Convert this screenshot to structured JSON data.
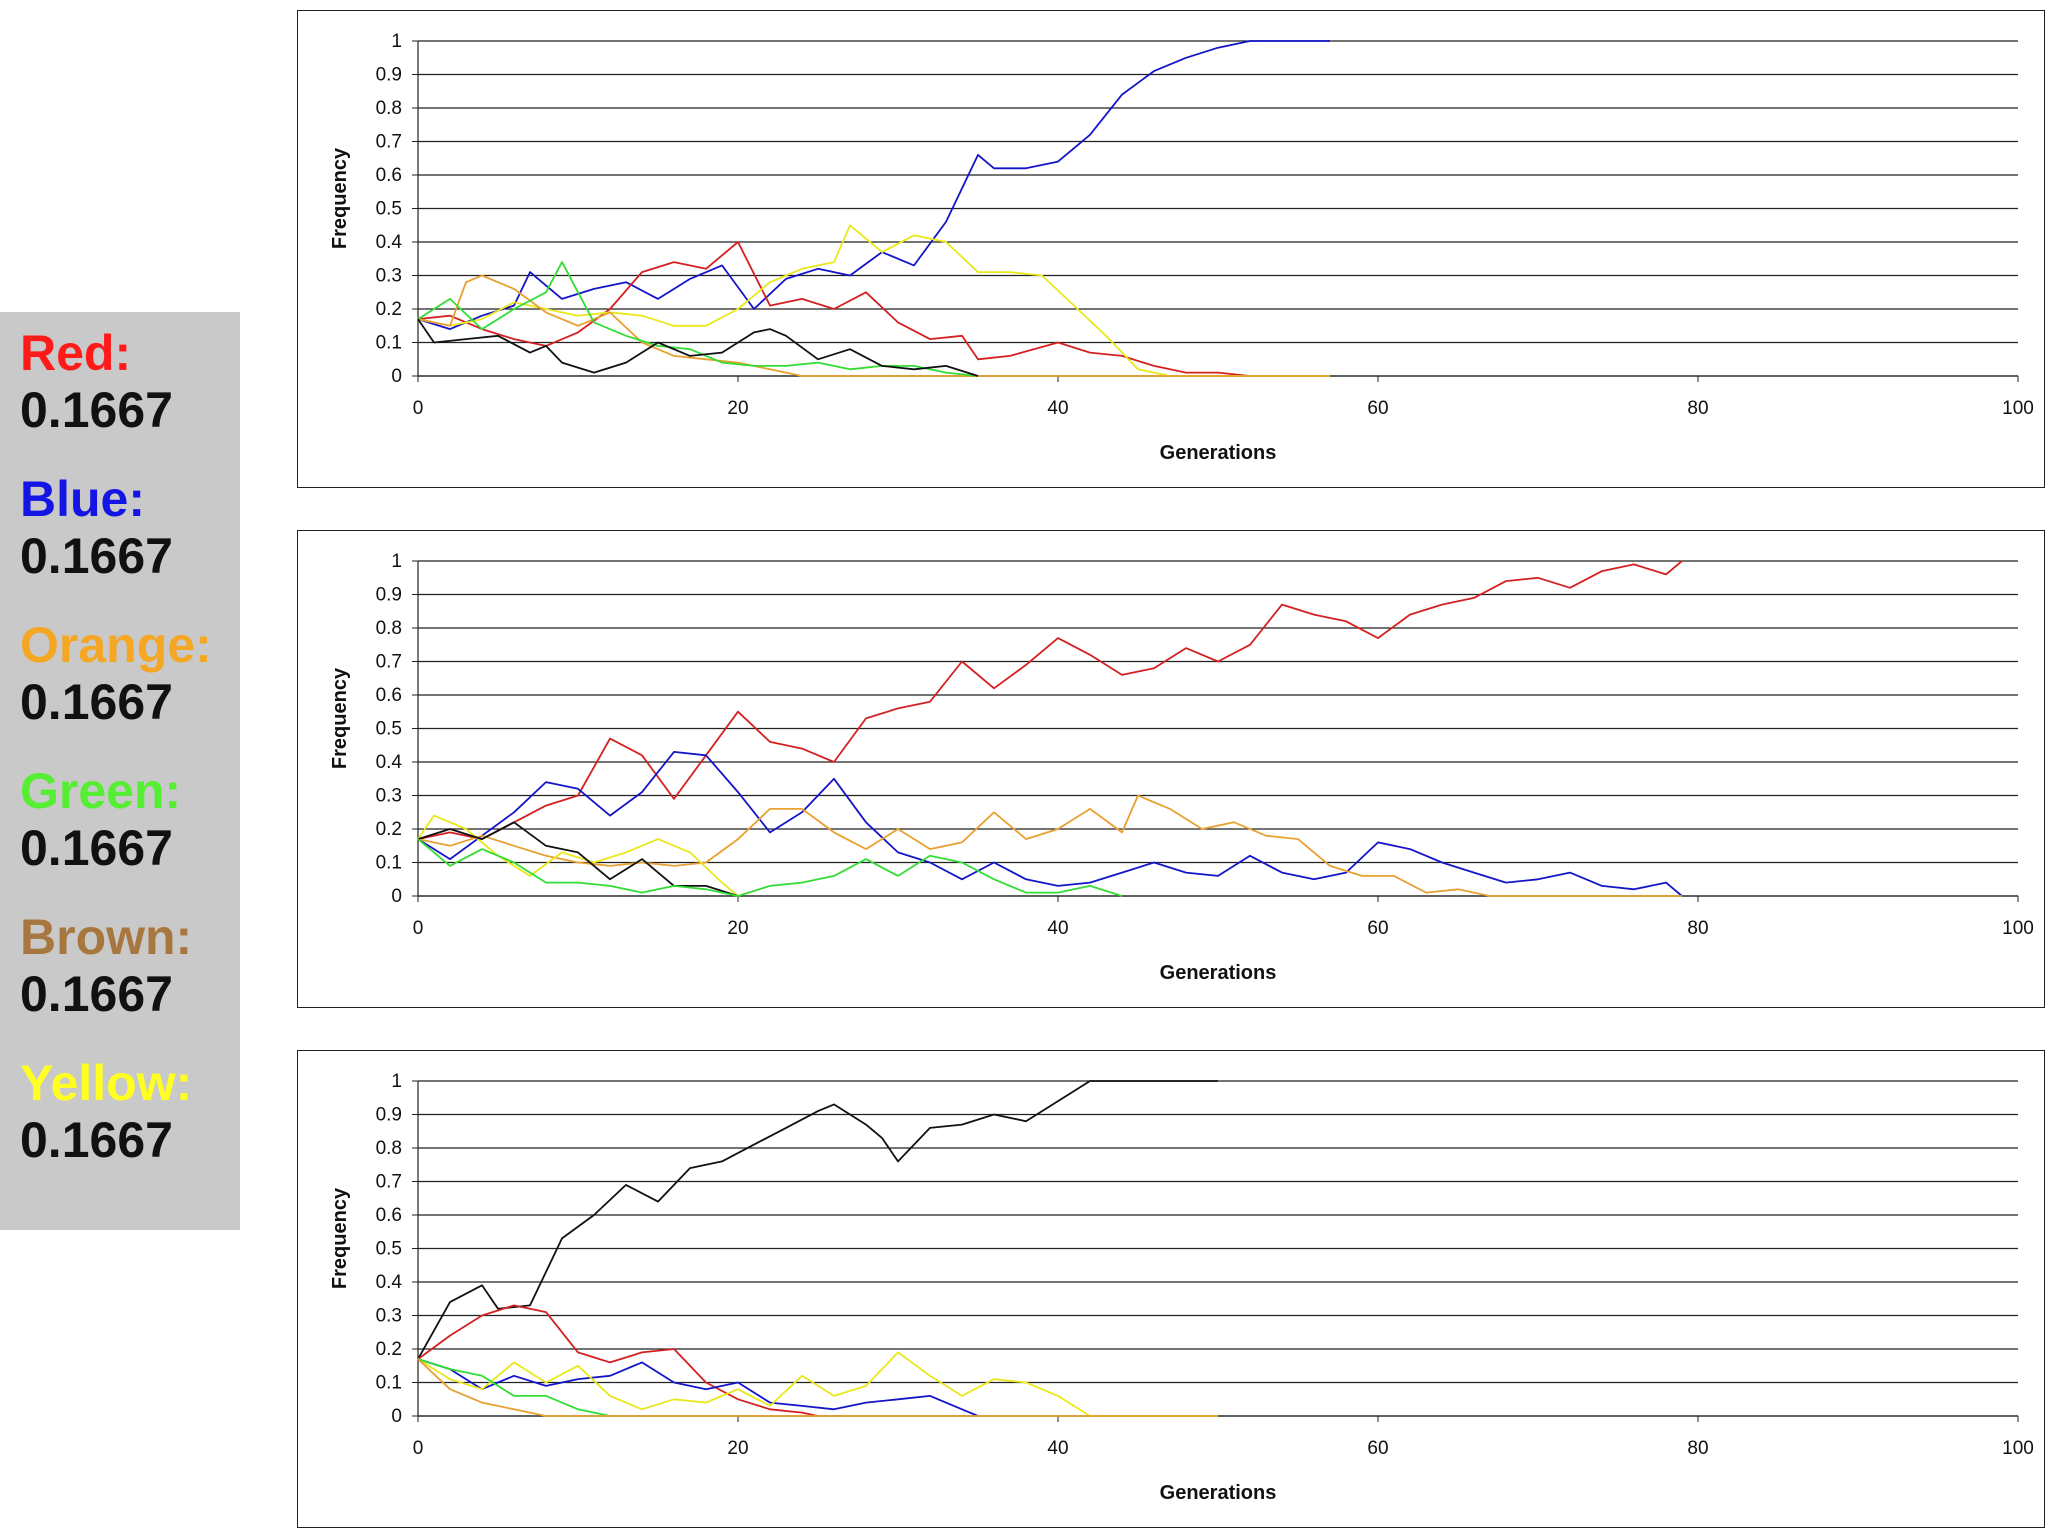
{
  "legend": {
    "items": [
      {
        "label": "Red:",
        "value": "0.1667",
        "color": "#ff1a1a"
      },
      {
        "label": "Blue:",
        "value": "0.1667",
        "color": "#1414e6"
      },
      {
        "label": "Orange:",
        "value": "0.1667",
        "color": "#f5a623"
      },
      {
        "label": "Green:",
        "value": "0.1667",
        "color": "#55ee33"
      },
      {
        "label": "Brown:",
        "value": "0.1667",
        "color": "#a8773f"
      },
      {
        "label": "Yellow:",
        "value": "0.1667",
        "color": "#ffff22"
      }
    ]
  },
  "chart_data": [
    {
      "type": "line",
      "title": "",
      "xlabel": "Generations",
      "ylabel": "Frequency",
      "xlim": [
        0,
        100
      ],
      "ylim": [
        0,
        1
      ],
      "x_ticks": [
        "0",
        "20",
        "40",
        "60",
        "80",
        "100"
      ],
      "y_ticks": [
        "0",
        "0.1",
        "0.2",
        "0.3",
        "0.4",
        "0.5",
        "0.6",
        "0.7",
        "0.8",
        "0.9",
        "1"
      ],
      "grid": true,
      "series": [
        {
          "name": "Blue",
          "color": "#1414c8",
          "x": [
            0,
            2,
            4,
            6,
            7,
            9,
            11,
            13,
            15,
            17,
            19,
            21,
            23,
            25,
            27,
            29,
            31,
            33,
            35,
            36,
            38,
            40,
            42,
            44,
            46,
            48,
            50,
            52,
            54,
            57
          ],
          "y": [
            0.17,
            0.14,
            0.18,
            0.21,
            0.31,
            0.23,
            0.26,
            0.28,
            0.23,
            0.29,
            0.33,
            0.2,
            0.29,
            0.32,
            0.3,
            0.37,
            0.33,
            0.46,
            0.66,
            0.62,
            0.62,
            0.64,
            0.72,
            0.84,
            0.91,
            0.95,
            0.98,
            1.0,
            1.0,
            1.0
          ]
        },
        {
          "name": "Red",
          "color": "#d42020",
          "x": [
            0,
            2,
            4,
            6,
            8,
            10,
            12,
            14,
            16,
            18,
            20,
            22,
            24,
            26,
            28,
            30,
            32,
            34,
            35,
            37,
            40,
            42,
            44,
            46,
            48,
            50,
            52
          ],
          "y": [
            0.17,
            0.18,
            0.14,
            0.11,
            0.09,
            0.13,
            0.2,
            0.31,
            0.34,
            0.32,
            0.4,
            0.21,
            0.23,
            0.2,
            0.25,
            0.16,
            0.11,
            0.12,
            0.05,
            0.06,
            0.1,
            0.07,
            0.06,
            0.03,
            0.01,
            0.01,
            0.0
          ]
        },
        {
          "name": "Yellow",
          "color": "#e8e81a",
          "x": [
            0,
            2,
            4,
            6,
            8,
            10,
            12,
            14,
            16,
            18,
            20,
            22,
            24,
            26,
            27,
            29,
            31,
            33,
            35,
            37,
            39,
            41,
            43,
            45,
            47,
            52,
            57
          ],
          "y": [
            0.17,
            0.15,
            0.17,
            0.22,
            0.2,
            0.18,
            0.19,
            0.18,
            0.15,
            0.15,
            0.2,
            0.28,
            0.32,
            0.34,
            0.45,
            0.37,
            0.42,
            0.4,
            0.31,
            0.31,
            0.3,
            0.21,
            0.12,
            0.02,
            0.0,
            0.0,
            0.0
          ]
        },
        {
          "name": "Orange",
          "color": "#e8a030",
          "x": [
            0,
            2,
            3,
            4,
            6,
            8,
            10,
            12,
            14,
            16,
            18,
            20,
            22,
            24,
            26,
            30,
            35,
            40,
            50,
            57
          ],
          "y": [
            0.17,
            0.15,
            0.28,
            0.3,
            0.26,
            0.19,
            0.15,
            0.19,
            0.1,
            0.06,
            0.05,
            0.04,
            0.02,
            0.0,
            0.0,
            0.0,
            0.0,
            0.0,
            0.0,
            0.0
          ]
        },
        {
          "name": "Green",
          "color": "#33dd33",
          "x": [
            0,
            2,
            4,
            6,
            8,
            9,
            11,
            13,
            15,
            17,
            19,
            21,
            23,
            25,
            27,
            29,
            31,
            33,
            35
          ],
          "y": [
            0.17,
            0.23,
            0.14,
            0.2,
            0.25,
            0.34,
            0.16,
            0.12,
            0.09,
            0.08,
            0.04,
            0.03,
            0.03,
            0.04,
            0.02,
            0.03,
            0.03,
            0.01,
            0.0
          ]
        },
        {
          "name": "Brown",
          "color": "#111111",
          "x": [
            0,
            1,
            3,
            5,
            7,
            8,
            9,
            11,
            13,
            15,
            17,
            19,
            21,
            22,
            23,
            25,
            27,
            29,
            31,
            33,
            35
          ],
          "y": [
            0.17,
            0.1,
            0.11,
            0.12,
            0.07,
            0.09,
            0.04,
            0.01,
            0.04,
            0.1,
            0.06,
            0.07,
            0.13,
            0.14,
            0.12,
            0.05,
            0.08,
            0.03,
            0.02,
            0.03,
            0.0
          ]
        }
      ]
    },
    {
      "type": "line",
      "title": "",
      "xlabel": "Generations",
      "ylabel": "Frequency",
      "xlim": [
        0,
        100
      ],
      "ylim": [
        0,
        1
      ],
      "x_ticks": [
        "0",
        "20",
        "40",
        "60",
        "80",
        "100"
      ],
      "y_ticks": [
        "0",
        "0.1",
        "0.2",
        "0.3",
        "0.4",
        "0.5",
        "0.6",
        "0.7",
        "0.8",
        "0.9",
        "1"
      ],
      "grid": true,
      "series": [
        {
          "name": "Red",
          "color": "#d42020",
          "x": [
            0,
            2,
            4,
            6,
            8,
            10,
            12,
            14,
            16,
            18,
            20,
            22,
            24,
            26,
            28,
            30,
            32,
            34,
            36,
            38,
            40,
            42,
            44,
            46,
            48,
            50,
            52,
            54,
            56,
            58,
            60,
            62,
            64,
            66,
            68,
            70,
            72,
            74,
            76,
            78,
            79
          ],
          "y": [
            0.17,
            0.19,
            0.17,
            0.22,
            0.27,
            0.3,
            0.47,
            0.42,
            0.29,
            0.42,
            0.55,
            0.46,
            0.44,
            0.4,
            0.53,
            0.56,
            0.58,
            0.7,
            0.62,
            0.69,
            0.77,
            0.72,
            0.66,
            0.68,
            0.74,
            0.7,
            0.75,
            0.87,
            0.84,
            0.82,
            0.77,
            0.84,
            0.87,
            0.89,
            0.94,
            0.95,
            0.92,
            0.97,
            0.99,
            0.96,
            1.0
          ]
        },
        {
          "name": "Blue",
          "color": "#1414c8",
          "x": [
            0,
            2,
            4,
            6,
            8,
            10,
            12,
            14,
            16,
            18,
            20,
            22,
            24,
            26,
            28,
            30,
            32,
            34,
            36,
            38,
            40,
            42,
            44,
            46,
            48,
            50,
            52,
            54,
            56,
            58,
            60,
            62,
            64,
            66,
            68,
            70,
            72,
            74,
            76,
            78,
            79
          ],
          "y": [
            0.17,
            0.11,
            0.18,
            0.25,
            0.34,
            0.32,
            0.24,
            0.31,
            0.43,
            0.42,
            0.31,
            0.19,
            0.25,
            0.35,
            0.22,
            0.13,
            0.1,
            0.05,
            0.1,
            0.05,
            0.03,
            0.04,
            0.07,
            0.1,
            0.07,
            0.06,
            0.12,
            0.07,
            0.05,
            0.07,
            0.16,
            0.14,
            0.1,
            0.07,
            0.04,
            0.05,
            0.07,
            0.03,
            0.02,
            0.04,
            0.0
          ]
        },
        {
          "name": "Orange",
          "color": "#e8a030",
          "x": [
            0,
            2,
            4,
            6,
            8,
            10,
            12,
            14,
            16,
            18,
            20,
            22,
            24,
            26,
            28,
            30,
            32,
            34,
            36,
            38,
            40,
            42,
            44,
            45,
            47,
            49,
            51,
            53,
            55,
            57,
            59,
            61,
            63,
            65,
            67,
            70,
            75,
            79
          ],
          "y": [
            0.17,
            0.15,
            0.18,
            0.15,
            0.12,
            0.1,
            0.09,
            0.1,
            0.09,
            0.1,
            0.17,
            0.26,
            0.26,
            0.19,
            0.14,
            0.2,
            0.14,
            0.16,
            0.25,
            0.17,
            0.2,
            0.26,
            0.19,
            0.3,
            0.26,
            0.2,
            0.22,
            0.18,
            0.17,
            0.09,
            0.06,
            0.06,
            0.01,
            0.02,
            0.0,
            0.0,
            0.0,
            0.0
          ]
        },
        {
          "name": "Yellow",
          "color": "#e8e81a",
          "x": [
            0,
            1,
            3,
            5,
            7,
            9,
            11,
            13,
            15,
            17,
            19,
            20
          ],
          "y": [
            0.17,
            0.24,
            0.2,
            0.12,
            0.06,
            0.13,
            0.1,
            0.13,
            0.17,
            0.13,
            0.04,
            0.0
          ]
        },
        {
          "name": "Brown",
          "color": "#111111",
          "x": [
            0,
            2,
            4,
            6,
            8,
            10,
            12,
            14,
            16,
            18,
            20
          ],
          "y": [
            0.17,
            0.2,
            0.17,
            0.22,
            0.15,
            0.13,
            0.05,
            0.11,
            0.03,
            0.03,
            0.0
          ]
        },
        {
          "name": "Green",
          "color": "#33dd33",
          "x": [
            0,
            2,
            4,
            6,
            8,
            10,
            12,
            14,
            16,
            18,
            20,
            22,
            24,
            26,
            28,
            30,
            32,
            34,
            36,
            38,
            40,
            42,
            44
          ],
          "y": [
            0.17,
            0.09,
            0.14,
            0.1,
            0.04,
            0.04,
            0.03,
            0.01,
            0.03,
            0.02,
            0.0,
            0.03,
            0.04,
            0.06,
            0.11,
            0.06,
            0.12,
            0.1,
            0.05,
            0.01,
            0.01,
            0.03,
            0.0
          ]
        }
      ]
    },
    {
      "type": "line",
      "title": "",
      "xlabel": "Generations",
      "ylabel": "Frequency",
      "xlim": [
        0,
        100
      ],
      "ylim": [
        0,
        1
      ],
      "x_ticks": [
        "0",
        "20",
        "40",
        "60",
        "80",
        "100"
      ],
      "y_ticks": [
        "0",
        "0.1",
        "0.2",
        "0.3",
        "0.4",
        "0.5",
        "0.6",
        "0.7",
        "0.8",
        "0.9",
        "1"
      ],
      "grid": true,
      "series": [
        {
          "name": "Brown",
          "color": "#111111",
          "x": [
            0,
            2,
            4,
            5,
            7,
            9,
            11,
            13,
            15,
            17,
            19,
            21,
            23,
            25,
            26,
            28,
            29,
            30,
            32,
            34,
            36,
            38,
            40,
            42,
            44,
            46,
            50
          ],
          "y": [
            0.17,
            0.34,
            0.39,
            0.32,
            0.33,
            0.53,
            0.6,
            0.69,
            0.64,
            0.74,
            0.76,
            0.81,
            0.86,
            0.91,
            0.93,
            0.87,
            0.83,
            0.76,
            0.86,
            0.87,
            0.9,
            0.88,
            0.94,
            1.0,
            1.0,
            1.0,
            1.0
          ]
        },
        {
          "name": "Red",
          "color": "#d42020",
          "x": [
            0,
            2,
            4,
            6,
            8,
            10,
            12,
            14,
            16,
            18,
            20,
            22,
            24,
            25
          ],
          "y": [
            0.17,
            0.24,
            0.3,
            0.33,
            0.31,
            0.19,
            0.16,
            0.19,
            0.2,
            0.1,
            0.05,
            0.02,
            0.01,
            0.0
          ]
        },
        {
          "name": "Blue",
          "color": "#1414c8",
          "x": [
            0,
            2,
            4,
            6,
            8,
            10,
            12,
            14,
            16,
            18,
            20,
            22,
            24,
            26,
            28,
            30,
            32,
            34,
            35
          ],
          "y": [
            0.17,
            0.14,
            0.08,
            0.12,
            0.09,
            0.11,
            0.12,
            0.16,
            0.1,
            0.08,
            0.1,
            0.04,
            0.03,
            0.02,
            0.04,
            0.05,
            0.06,
            0.02,
            0.0
          ]
        },
        {
          "name": "Yellow",
          "color": "#e8e81a",
          "x": [
            0,
            2,
            4,
            6,
            8,
            10,
            12,
            14,
            16,
            18,
            20,
            22,
            24,
            26,
            28,
            30,
            32,
            34,
            36,
            38,
            40,
            42,
            50
          ],
          "y": [
            0.17,
            0.11,
            0.08,
            0.16,
            0.1,
            0.15,
            0.06,
            0.02,
            0.05,
            0.04,
            0.08,
            0.03,
            0.12,
            0.06,
            0.09,
            0.19,
            0.12,
            0.06,
            0.11,
            0.1,
            0.06,
            0.0,
            0.0
          ]
        },
        {
          "name": "Green",
          "color": "#33dd33",
          "x": [
            0,
            2,
            4,
            6,
            8,
            10,
            12
          ],
          "y": [
            0.17,
            0.14,
            0.12,
            0.06,
            0.06,
            0.02,
            0.0
          ]
        },
        {
          "name": "Orange",
          "color": "#e8a030",
          "x": [
            0,
            2,
            4,
            6,
            8,
            12,
            20,
            30,
            40,
            50
          ],
          "y": [
            0.17,
            0.08,
            0.04,
            0.02,
            0.0,
            0.0,
            0.0,
            0.0,
            0.0,
            0.0
          ]
        }
      ]
    }
  ]
}
